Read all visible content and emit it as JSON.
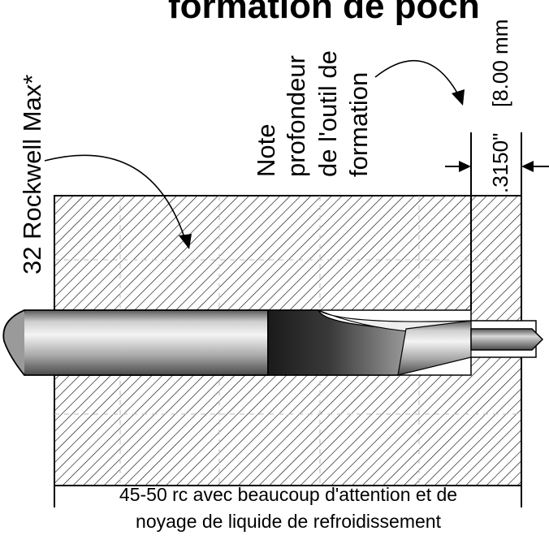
{
  "title": "formation de poch",
  "side_label": "32 Rockwell Max*",
  "note": {
    "lines": [
      "Note",
      "profondeur",
      "de l'outil de",
      "formation"
    ]
  },
  "dimension": {
    "inches": ".3150\"",
    "mm": "[8.00 mm"
  },
  "caption": {
    "line1": "45-50 rc avec beaucoup d'attention et de",
    "line2": "noyage de liquide de refroidissement"
  }
}
